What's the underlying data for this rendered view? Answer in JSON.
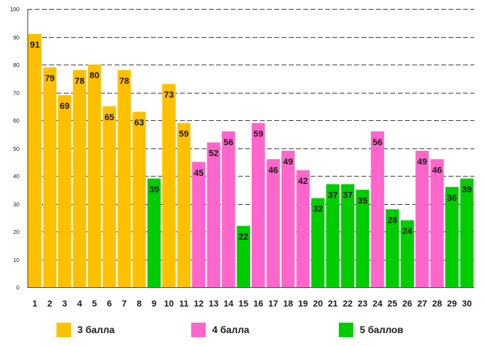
{
  "chart_data": {
    "type": "bar",
    "categories": [
      "1",
      "2",
      "3",
      "4",
      "5",
      "6",
      "7",
      "8",
      "9",
      "10",
      "11",
      "12",
      "13",
      "14",
      "15",
      "16",
      "17",
      "18",
      "19",
      "20",
      "21",
      "22",
      "23",
      "24",
      "25",
      "26",
      "27",
      "28",
      "29",
      "30"
    ],
    "values": [
      91,
      79,
      69,
      78,
      80,
      65,
      78,
      63,
      39,
      73,
      59,
      45,
      52,
      56,
      22,
      59,
      46,
      49,
      42,
      32,
      37,
      37,
      35,
      56,
      28,
      24,
      49,
      46,
      36,
      39
    ],
    "groups": [
      "g3",
      "g3",
      "g3",
      "g3",
      "g3",
      "g3",
      "g3",
      "g3",
      "g5",
      "g3",
      "g3",
      "g4",
      "g4",
      "g4",
      "g5",
      "g4",
      "g4",
      "g4",
      "g4",
      "g5",
      "g5",
      "g5",
      "g5",
      "g4",
      "g5",
      "g5",
      "g4",
      "g4",
      "g5",
      "g5"
    ],
    "ylim": [
      0,
      100
    ],
    "yticks": [
      0,
      10,
      20,
      30,
      40,
      50,
      60,
      70,
      80,
      90,
      100
    ],
    "grid": true,
    "title": "",
    "xlabel": "",
    "ylabel": "",
    "series_colors": {
      "g3": "#FFC000",
      "g4": "#FF66CC",
      "g5": "#00CC00"
    },
    "legend": [
      {
        "group": "g3",
        "label": "3 балла",
        "color": "#FFC000"
      },
      {
        "group": "g4",
        "label": "4 балла",
        "color": "#FF66CC"
      },
      {
        "group": "g5",
        "label": "5 баллов",
        "color": "#00CC00"
      }
    ]
  }
}
